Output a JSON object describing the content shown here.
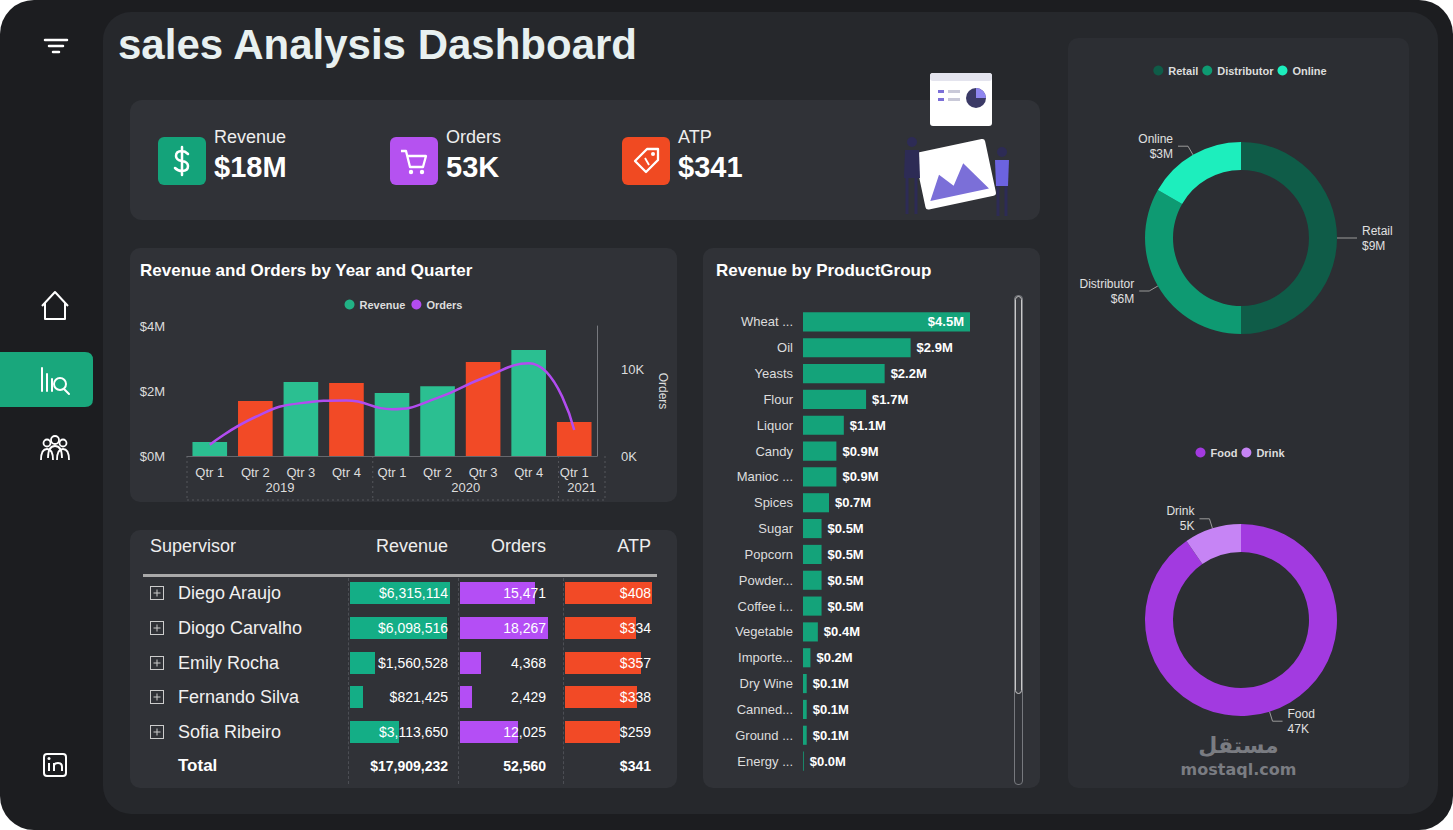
{
  "title": "sales Analysis Dashboard",
  "kpis": [
    {
      "label": "Revenue",
      "value": "$18M"
    },
    {
      "label": "Orders",
      "value": "53K"
    },
    {
      "label": "ATP",
      "value": "$341"
    }
  ],
  "chart_data": [
    {
      "type": "bar",
      "title": "Revenue and Orders by Year and Quarter",
      "categories": [
        "Qtr 1",
        "Qtr 2",
        "Qtr 3",
        "Qtr 4",
        "Qtr 1",
        "Qtr 2",
        "Qtr 3",
        "Qtr 4",
        "Qtr 1"
      ],
      "category_groups": [
        "2019",
        "2019",
        "2019",
        "2019",
        "2020",
        "2020",
        "2020",
        "2020",
        "2021"
      ],
      "series": [
        {
          "name": "Revenue",
          "type": "bar",
          "color": "#21b285",
          "colors": [
            "#2bbf91",
            "#f24a26",
            "#2bbf91",
            "#f24a26",
            "#2bbf91",
            "#2bbf91",
            "#f24a26",
            "#2bbf91",
            "#f24a26"
          ],
          "values": [
            430000,
            1690000,
            2280000,
            2250000,
            1940000,
            2150000,
            2890000,
            3260000,
            1050000
          ]
        },
        {
          "name": "Orders",
          "type": "line",
          "axis": "y2",
          "color": "#b24cf0",
          "values": [
            1300,
            4500,
            6100,
            6400,
            5400,
            6700,
            9000,
            10700,
            3000
          ]
        }
      ],
      "ylim": [
        0,
        4000000
      ],
      "yticks": [
        {
          "value": 0,
          "label": "$0M"
        },
        {
          "value": 2000000,
          "label": "$2M"
        },
        {
          "value": 4000000,
          "label": "$4M"
        }
      ],
      "y2lim": [
        0,
        15000
      ],
      "y2ticks": [
        {
          "value": 0,
          "label": "0K"
        },
        {
          "value": 10000,
          "label": "10K"
        }
      ],
      "y2_label": "Orders",
      "legend": "top",
      "grid": false
    },
    {
      "type": "bar",
      "title": "Revenue by ProductGroup",
      "orientation": "horizontal",
      "categories": [
        "Wheat ...",
        "Oil",
        "Yeasts",
        "Flour",
        "Liquor",
        "Candy",
        "Manioc ...",
        "Spices",
        "Sugar",
        "Popcorn",
        "Powder...",
        "Coffee i...",
        "Vegetable",
        "Importe...",
        "Dry Wine",
        "Canned...",
        "Ground ...",
        "Energy ..."
      ],
      "values": [
        4500000,
        2900000,
        2200000,
        1700000,
        1100000,
        900000,
        900000,
        700000,
        500000,
        500000,
        500000,
        500000,
        400000,
        200000,
        100000,
        100000,
        100000,
        20000
      ],
      "value_labels": [
        "$4.5M",
        "$2.9M",
        "$2.2M",
        "$1.7M",
        "$1.1M",
        "$0.9M",
        "$0.9M",
        "$0.7M",
        "$0.5M",
        "$0.5M",
        "$0.5M",
        "$0.5M",
        "$0.4M",
        "$0.2M",
        "$0.1M",
        "$0.1M",
        "$0.1M",
        "$0.0M"
      ],
      "color": "#14a37a",
      "data_labels": true,
      "tick_labels": "y",
      "xlim": [
        0,
        4500000
      ],
      "grid": false
    },
    {
      "type": "pie",
      "categories": [
        "Retail",
        "Distributor",
        "Online"
      ],
      "values": [
        9,
        6,
        3
      ],
      "value_labels": [
        "$9M",
        "$6M",
        "$3M"
      ],
      "colors": [
        "#0f5c48",
        "#0e9a72",
        "#1deebd"
      ],
      "legend": "top",
      "data_labels": true
    },
    {
      "type": "pie",
      "categories": [
        "Food",
        "Drink"
      ],
      "values": [
        47,
        5
      ],
      "value_labels": [
        "47K",
        "5K"
      ],
      "colors": [
        "#a23ae0",
        "#c684f5"
      ],
      "legend": "top",
      "data_labels": true
    }
  ],
  "table": {
    "columns": [
      "Supervisor",
      "Revenue",
      "Orders",
      "ATP"
    ],
    "rows": [
      {
        "name": "Diego Araujo",
        "values": [
          6315114,
          15471,
          408
        ],
        "value_labels": [
          "$6,315,114",
          "15,471",
          "$408"
        ]
      },
      {
        "name": "Diogo Carvalho",
        "values": [
          6098516,
          18267,
          334
        ],
        "value_labels": [
          "$6,098,516",
          "18,267",
          "$334"
        ]
      },
      {
        "name": "Emily Rocha",
        "values": [
          1560528,
          4368,
          357
        ],
        "value_labels": [
          "$1,560,528",
          "4,368",
          "$357"
        ]
      },
      {
        "name": "Fernando Silva",
        "values": [
          821425,
          2429,
          338
        ],
        "value_labels": [
          "$821,425",
          "2,429",
          "$338"
        ]
      },
      {
        "name": "Sofia Ribeiro",
        "values": [
          3113650,
          12025,
          259
        ],
        "value_labels": [
          "$3,113,650",
          "12,025",
          "$259"
        ]
      }
    ],
    "total": {
      "name": "Total",
      "value_labels": [
        "$17,909,232",
        "52,560",
        "$341"
      ]
    }
  },
  "watermark": [
    "مستقل",
    "mostaql.com"
  ]
}
